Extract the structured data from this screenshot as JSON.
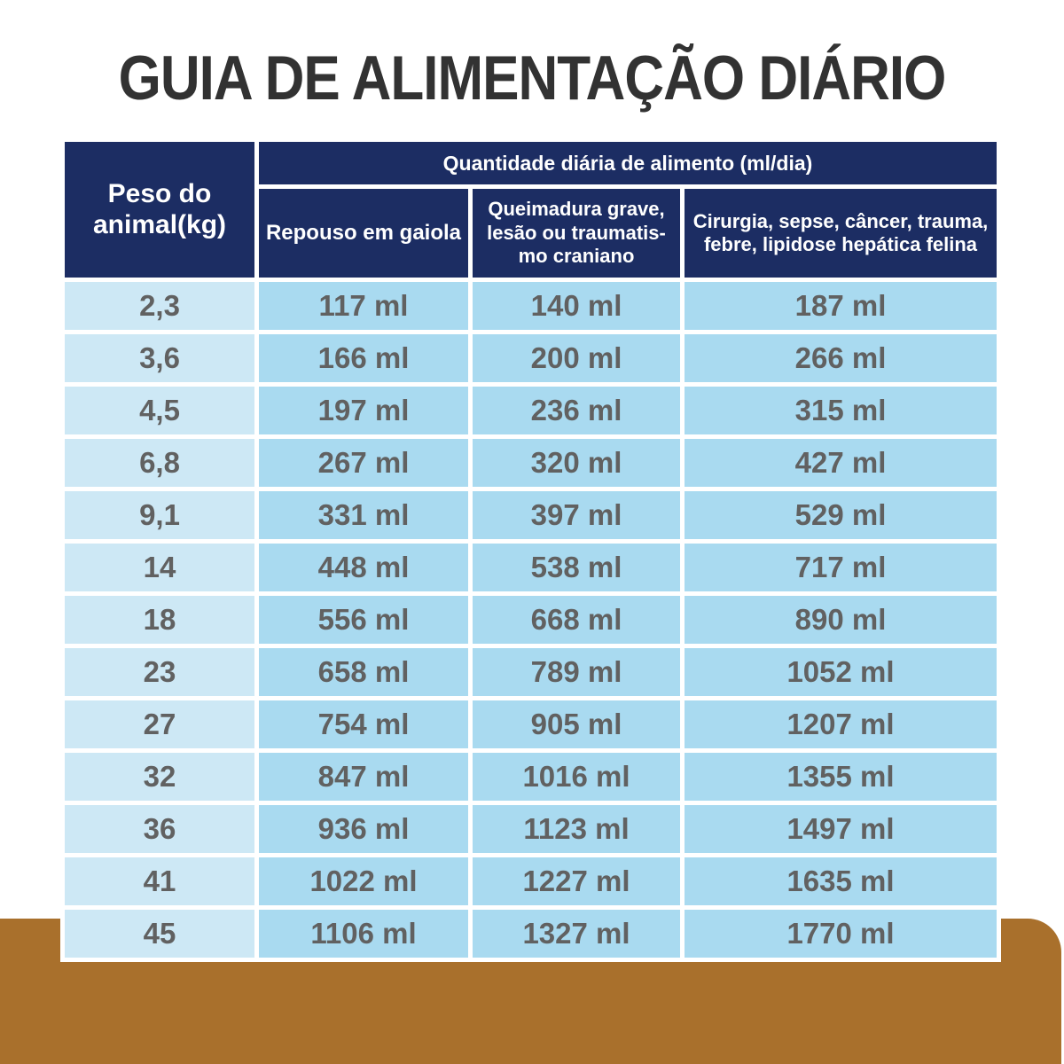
{
  "title": "GUIA DE ALIMENTAÇÃO DIÁRIO",
  "colors": {
    "header_navy": "#1c2d63",
    "weight_cell_blue": "#cde8f5",
    "value_cell_blue": "#a9daf0",
    "cell_text_gray": "#616161",
    "title_color": "#323232",
    "brown_band": "#a9702c",
    "header_text": "#ffffff"
  },
  "table": {
    "weight_header": "Peso do\nanimal(kg)",
    "group_header": "Quantidade diária de alimento (ml/dia)",
    "condition_headers": [
      "Repouso em gaiola",
      "Queimadura grave,\nlesão ou traumatis-\nmo craniano",
      "Cirurgia, sepse, câncer, trauma,\nfebre, lipidose hepática felina"
    ],
    "rows": [
      {
        "weight": "2,3",
        "values": [
          "117 ml",
          "140 ml",
          "187 ml"
        ]
      },
      {
        "weight": "3,6",
        "values": [
          "166 ml",
          "200 ml",
          "266 ml"
        ]
      },
      {
        "weight": "4,5",
        "values": [
          "197 ml",
          "236 ml",
          "315 ml"
        ]
      },
      {
        "weight": "6,8",
        "values": [
          "267 ml",
          "320 ml",
          "427 ml"
        ]
      },
      {
        "weight": "9,1",
        "values": [
          "331 ml",
          "397 ml",
          "529 ml"
        ]
      },
      {
        "weight": "14",
        "values": [
          "448 ml",
          "538 ml",
          "717 ml"
        ]
      },
      {
        "weight": "18",
        "values": [
          "556 ml",
          "668 ml",
          "890 ml"
        ]
      },
      {
        "weight": "23",
        "values": [
          "658 ml",
          "789 ml",
          "1052 ml"
        ]
      },
      {
        "weight": "27",
        "values": [
          "754 ml",
          "905 ml",
          "1207 ml"
        ]
      },
      {
        "weight": "32",
        "values": [
          "847 ml",
          "1016 ml",
          "1355 ml"
        ]
      },
      {
        "weight": "36",
        "values": [
          "936 ml",
          "1123 ml",
          "1497 ml"
        ]
      },
      {
        "weight": "41",
        "values": [
          "1022 ml",
          "1227 ml",
          "1635 ml"
        ]
      },
      {
        "weight": "45",
        "values": [
          "1106 ml",
          "1327 ml",
          "1770 ml"
        ]
      }
    ]
  }
}
